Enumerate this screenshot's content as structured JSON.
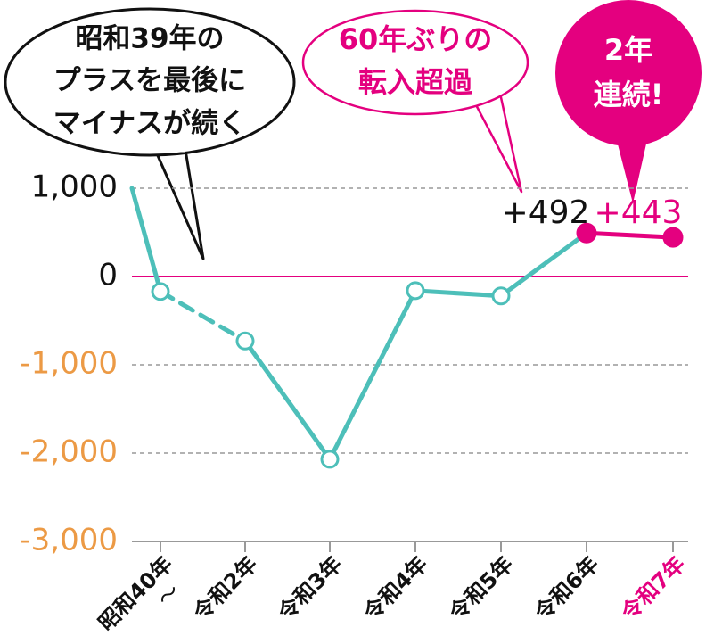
{
  "chart_data": {
    "type": "line",
    "categories": [
      null,
      "昭和40年",
      "令和2年",
      "令和3年",
      "令和4年",
      "令和5年",
      "令和6年",
      "令和7年"
    ],
    "range_separator": "〜",
    "values": [
      1000,
      -170,
      -730,
      -2070,
      -160,
      -220,
      492,
      443
    ],
    "value_labels": [
      null,
      null,
      null,
      null,
      null,
      null,
      "+492",
      "+443"
    ],
    "color": "#4dbfb9",
    "highlight_color": "#e4007f",
    "highlight_from": 6,
    "highlight_category": 7,
    "dashed_segments": [
      1
    ],
    "ylim": [
      -3000,
      1000
    ],
    "yticks": [
      {
        "value": 1000,
        "label": "1,000"
      },
      0,
      {
        "value": -1000,
        "label": "-1,000"
      },
      {
        "value": -2000,
        "label": "-2,000"
      },
      {
        "value": -3000,
        "label": "-3,000"
      }
    ],
    "negative_tick_color": "#ec9a45",
    "grid": true,
    "annotations": [
      {
        "lines": [
          "昭和39年の",
          "プラスを最後に",
          "マイナスが続く"
        ]
      },
      {
        "lines": [
          "60年ぶりの",
          "転入超過"
        ]
      },
      {
        "lines": [
          "2年",
          "連続!"
        ]
      }
    ]
  }
}
